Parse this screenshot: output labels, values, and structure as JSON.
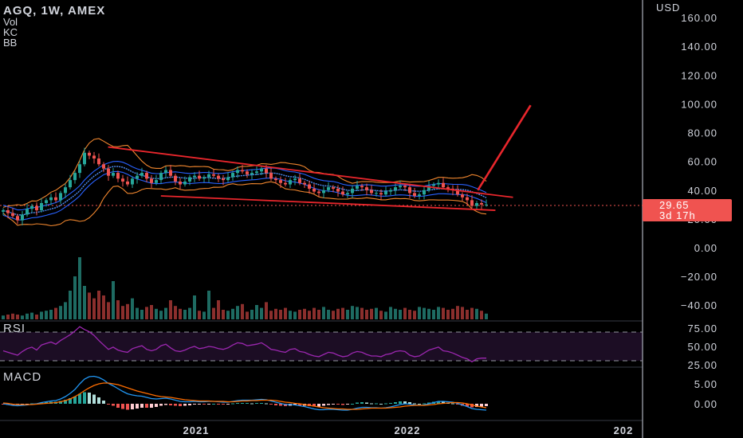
{
  "header": {
    "title": "AGQ, 1W, AMEX",
    "indicators": [
      "Vol",
      "KC",
      "BB"
    ]
  },
  "currency": "USD",
  "price_badge": {
    "price": "29.65",
    "countdown": "3d 17h",
    "color": "#f05350"
  },
  "panes": {
    "rsi_label": "RSI",
    "macd_label": "MACD"
  },
  "colors": {
    "background": "#000000",
    "up": "#26a69a",
    "down": "#ef5350",
    "kc_basis": "#4f8ef7",
    "bb_bands": "#f0862e",
    "kc_bands": "#2962ff",
    "trendline": "#e8262c",
    "rsi_line": "#9c27b0",
    "macd_line": "#2196f3",
    "signal_line": "#ff6d00"
  },
  "chart_data": [
    {
      "type": "candlestick",
      "title": "AGQ, 1W, AMEX",
      "ylabel": "USD",
      "ylim": [
        -47,
        163
      ],
      "y_ticks": [
        "160.00",
        "140.00",
        "120.00",
        "100.00",
        "80.00",
        "60.00",
        "40.00",
        "20.00",
        "0.00",
        "−20.00",
        "−40.00"
      ],
      "x_ticks": [
        "2021",
        "2022",
        "202"
      ],
      "current_price": 29.65,
      "close_series": [
        26,
        24,
        22,
        19,
        23,
        27,
        29,
        26,
        31,
        33,
        35,
        33,
        38,
        42,
        47,
        52,
        58,
        66,
        64,
        62,
        58,
        55,
        50,
        52,
        48,
        46,
        44,
        48,
        50,
        52,
        48,
        45,
        47,
        52,
        54,
        50,
        46,
        44,
        46,
        49,
        50,
        48,
        49,
        51,
        50,
        48,
        47,
        49,
        52,
        54,
        53,
        51,
        52,
        53,
        55,
        52,
        48,
        47,
        45,
        44,
        47,
        48,
        45,
        44,
        41,
        39,
        38,
        40,
        42,
        41,
        39,
        37,
        38,
        41,
        43,
        42,
        40,
        38,
        38,
        37,
        39,
        40,
        42,
        43,
        42,
        38,
        36,
        37,
        40,
        43,
        44,
        45,
        42,
        41,
        40,
        37,
        35,
        33,
        29,
        31,
        30,
        30
      ],
      "trendlines": [
        {
          "x": [
            "2020-08",
            "2022-07"
          ],
          "y": [
            70,
            35
          ]
        },
        {
          "x": [
            "2020-11",
            "2022-06"
          ],
          "y": [
            36,
            26
          ]
        },
        {
          "x": [
            "2022-05",
            "2022-08"
          ],
          "y": [
            40,
            99
          ]
        }
      ]
    },
    {
      "type": "bar",
      "name": "Vol",
      "values": [
        4,
        5,
        6,
        5,
        4,
        6,
        7,
        5,
        8,
        9,
        10,
        12,
        14,
        18,
        30,
        45,
        65,
        35,
        28,
        22,
        30,
        25,
        18,
        40,
        20,
        14,
        16,
        22,
        12,
        10,
        13,
        15,
        11,
        9,
        12,
        20,
        14,
        11,
        10,
        12,
        25,
        9,
        8,
        30,
        12,
        20,
        10,
        9,
        11,
        14,
        16,
        8,
        10,
        15,
        12,
        18,
        9,
        11,
        10,
        12,
        9,
        8,
        10,
        11,
        9,
        12,
        10,
        13,
        10,
        9,
        11,
        12,
        10,
        14,
        13,
        12,
        10,
        11,
        12,
        9,
        8,
        13,
        11,
        10,
        12,
        10,
        9,
        13,
        12,
        11,
        10,
        13,
        12,
        10,
        11,
        14,
        13,
        10,
        12,
        11,
        9,
        6
      ]
    },
    {
      "type": "line",
      "name": "RSI",
      "y_ticks": [
        "75.00",
        "50.00",
        "25.00"
      ],
      "ylim": [
        18,
        82
      ],
      "values": [
        44,
        42,
        40,
        38,
        43,
        47,
        49,
        45,
        52,
        54,
        56,
        53,
        58,
        62,
        66,
        71,
        77,
        73,
        70,
        65,
        58,
        52,
        46,
        49,
        45,
        43,
        42,
        47,
        49,
        51,
        46,
        44,
        46,
        51,
        53,
        48,
        44,
        43,
        45,
        48,
        50,
        47,
        48,
        50,
        49,
        47,
        46,
        48,
        52,
        55,
        54,
        51,
        52,
        53,
        55,
        51,
        46,
        45,
        43,
        42,
        46,
        47,
        43,
        42,
        39,
        37,
        36,
        39,
        42,
        41,
        38,
        36,
        37,
        41,
        43,
        42,
        39,
        37,
        37,
        36,
        39,
        40,
        43,
        44,
        43,
        38,
        36,
        37,
        41,
        45,
        47,
        49,
        44,
        43,
        41,
        38,
        35,
        33,
        29,
        33,
        34,
        34
      ]
    },
    {
      "type": "line",
      "name": "MACD",
      "y_ticks": [
        "5.00",
        "0.00"
      ],
      "ylim": [
        -3.5,
        8.5
      ],
      "macd": [
        0,
        -0.2,
        -0.4,
        -0.5,
        -0.4,
        -0.3,
        -0.1,
        0,
        0.3,
        0.5,
        0.7,
        0.8,
        1.2,
        1.8,
        2.6,
        3.6,
        5,
        6.2,
        6.8,
        6.9,
        6.6,
        6,
        5.1,
        4.5,
        3.8,
        3.1,
        2.5,
        2.2,
        2,
        1.9,
        1.6,
        1.3,
        1.2,
        1.3,
        1.4,
        1.2,
        0.9,
        0.6,
        0.5,
        0.5,
        0.6,
        0.5,
        0.5,
        0.6,
        0.6,
        0.5,
        0.4,
        0.4,
        0.6,
        0.8,
        0.9,
        0.9,
        0.9,
        1,
        1.1,
        1,
        0.7,
        0.4,
        0.1,
        -0.2,
        -0.2,
        -0.3,
        -0.5,
        -0.7,
        -1,
        -1.3,
        -1.5,
        -1.5,
        -1.4,
        -1.4,
        -1.5,
        -1.6,
        -1.6,
        -1.4,
        -1.1,
        -0.9,
        -0.9,
        -1,
        -1,
        -1.1,
        -1,
        -0.8,
        -0.5,
        -0.2,
        0,
        -0.1,
        -0.3,
        -0.4,
        -0.3,
        0,
        0.3,
        0.6,
        0.6,
        0.5,
        0.4,
        0.1,
        -0.3,
        -0.7,
        -1.2,
        -1.4,
        -1.5,
        -1.6
      ],
      "signal": [
        0.2,
        0.1,
        -0.1,
        -0.2,
        -0.2,
        -0.2,
        -0.2,
        -0.1,
        0,
        0.1,
        0.2,
        0.3,
        0.5,
        0.8,
        1.2,
        1.8,
        2.5,
        3.3,
        4,
        4.6,
        5,
        5.2,
        5.2,
        5,
        4.8,
        4.4,
        4,
        3.6,
        3.2,
        2.9,
        2.6,
        2.3,
        2,
        1.8,
        1.7,
        1.6,
        1.4,
        1.2,
        1,
        0.9,
        0.8,
        0.7,
        0.7,
        0.7,
        0.6,
        0.6,
        0.6,
        0.5,
        0.5,
        0.6,
        0.7,
        0.7,
        0.8,
        0.8,
        0.9,
        0.9,
        0.9,
        0.8,
        0.6,
        0.4,
        0.3,
        0.1,
        0,
        -0.2,
        -0.4,
        -0.6,
        -0.8,
        -1,
        -1.1,
        -1.2,
        -1.3,
        -1.3,
        -1.4,
        -1.4,
        -1.4,
        -1.3,
        -1.2,
        -1.1,
        -1.1,
        -1.1,
        -1.1,
        -1,
        -0.9,
        -0.8,
        -0.6,
        -0.5,
        -0.4,
        -0.4,
        -0.4,
        -0.3,
        -0.2,
        0,
        0.1,
        0.2,
        0.3,
        0.3,
        0.2,
        0,
        -0.3,
        -0.6,
        -0.8,
        -1
      ]
    }
  ]
}
